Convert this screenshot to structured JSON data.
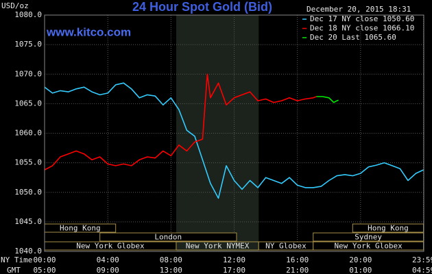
{
  "chart_data": {
    "type": "line",
    "title": "24 Hour Spot Gold (Bid)",
    "y_label": "USD/oz",
    "watermark": "www.kitco.com",
    "timestamp": "December 20, 2015 18:31",
    "x_label": "NY Time",
    "x2_label": "GMT",
    "xlim": [
      0,
      24
    ],
    "ylim": [
      1040,
      1080
    ],
    "xticks": [
      {
        "value": 0,
        "label": "00:00"
      },
      {
        "value": 4,
        "label": "04:00"
      },
      {
        "value": 8,
        "label": "08:00"
      },
      {
        "value": 12,
        "label": "12:00"
      },
      {
        "value": 16,
        "label": "16:00"
      },
      {
        "value": 20,
        "label": "20:00"
      },
      {
        "value": 23.98,
        "label": "23:59"
      }
    ],
    "x2ticks": [
      {
        "value": 0,
        "label": "05:00"
      },
      {
        "value": 4,
        "label": "09:00"
      },
      {
        "value": 8,
        "label": "13:00"
      },
      {
        "value": 12,
        "label": "17:00"
      },
      {
        "value": 16,
        "label": "21:00"
      },
      {
        "value": 20,
        "label": "01:00"
      },
      {
        "value": 23.98,
        "label": "04:59"
      }
    ],
    "yticks": [
      {
        "value": 1040,
        "label": "1040.0"
      },
      {
        "value": 1045,
        "label": "1045.0"
      },
      {
        "value": 1050,
        "label": "1050.0"
      },
      {
        "value": 1055,
        "label": "1055.0"
      },
      {
        "value": 1060,
        "label": "1060.0"
      },
      {
        "value": 1065,
        "label": "1065.0"
      },
      {
        "value": 1070,
        "label": "1070.0"
      },
      {
        "value": 1075,
        "label": "1075.0"
      },
      {
        "value": 1080,
        "label": "1080.0"
      }
    ],
    "grid": true,
    "legend": "top-right",
    "series": [
      {
        "name": "Dec 17 NY close 1050.60",
        "color": "#33ccff",
        "x": [
          0,
          0.5,
          1,
          1.5,
          2,
          2.5,
          3,
          3.5,
          4,
          4.5,
          5,
          5.5,
          6,
          6.5,
          7,
          7.5,
          8,
          8.5,
          9,
          9.5,
          10,
          10.5,
          11,
          11.5,
          12,
          12.5,
          13,
          13.5,
          14,
          14.5,
          15,
          15.5,
          16,
          16.5,
          17,
          17.5,
          18,
          18.5,
          19,
          19.5,
          20,
          20.5,
          21,
          21.5,
          22,
          22.5,
          23,
          23.5,
          23.98
        ],
        "values": [
          1067.8,
          1066.8,
          1067.2,
          1067.0,
          1067.5,
          1067.8,
          1067.0,
          1066.5,
          1066.8,
          1068.2,
          1068.5,
          1067.5,
          1066.0,
          1066.5,
          1066.3,
          1064.8,
          1066.0,
          1064.0,
          1060.5,
          1059.5,
          1055.5,
          1051.5,
          1049.0,
          1054.5,
          1052.0,
          1050.5,
          1052.0,
          1050.8,
          1052.5,
          1052.0,
          1051.5,
          1052.5,
          1051.2,
          1050.8,
          1050.8,
          1051.0,
          1052.0,
          1052.8,
          1053.0,
          1052.8,
          1053.2,
          1054.3,
          1054.6,
          1055.0,
          1054.5,
          1054.0,
          1052.0,
          1053.2,
          1053.8
        ]
      },
      {
        "name": "Dec 18 NY close 1066.10",
        "color": "#ff0000",
        "x": [
          0,
          0.5,
          1,
          1.5,
          2,
          2.5,
          3,
          3.5,
          4,
          4.5,
          5,
          5.5,
          6,
          6.5,
          7,
          7.5,
          8,
          8.5,
          9,
          9.5,
          10,
          10.3,
          10.5,
          11,
          11.5,
          12,
          12.5,
          13,
          13.5,
          14,
          14.5,
          15,
          15.5,
          16,
          16.5,
          17,
          17.2
        ],
        "values": [
          1053.8,
          1054.5,
          1056.0,
          1056.5,
          1057.0,
          1056.5,
          1055.5,
          1056.0,
          1054.8,
          1054.5,
          1054.8,
          1054.5,
          1055.5,
          1056.0,
          1055.8,
          1057.0,
          1056.2,
          1058.0,
          1057.0,
          1058.5,
          1059.0,
          1070.0,
          1066.0,
          1068.5,
          1064.8,
          1066.0,
          1066.5,
          1067.0,
          1065.5,
          1065.8,
          1065.2,
          1065.5,
          1066.0,
          1065.5,
          1065.8,
          1066.0,
          1066.2
        ]
      },
      {
        "name": "Dec 20 Last 1065.60",
        "color": "#00ee00",
        "x": [
          17.2,
          17.6,
          18,
          18.3,
          18.5,
          18.6
        ],
        "values": [
          1066.2,
          1066.2,
          1066.0,
          1065.2,
          1065.5,
          1065.6
        ]
      }
    ],
    "sessions": [
      [
        {
          "name": "Hong Kong",
          "start": 0,
          "end": 4.5
        },
        {
          "name": "Hong Kong",
          "start": 19.5,
          "end": 23.98
        }
      ],
      [
        {
          "name": "London",
          "start": 3.5,
          "end": 12.15
        },
        {
          "name": "Sydney",
          "start": 17,
          "end": 23.98
        }
      ],
      [
        {
          "name": "New York Globex",
          "start": 0,
          "end": 8.33
        },
        {
          "name": "New York NYMEX",
          "start": 8.33,
          "end": 13.55,
          "highlight": true
        },
        {
          "name": "NY Globex",
          "start": 13.55,
          "end": 17
        },
        {
          "name": "New York Globex",
          "start": 17,
          "end": 23.98
        }
      ]
    ]
  }
}
